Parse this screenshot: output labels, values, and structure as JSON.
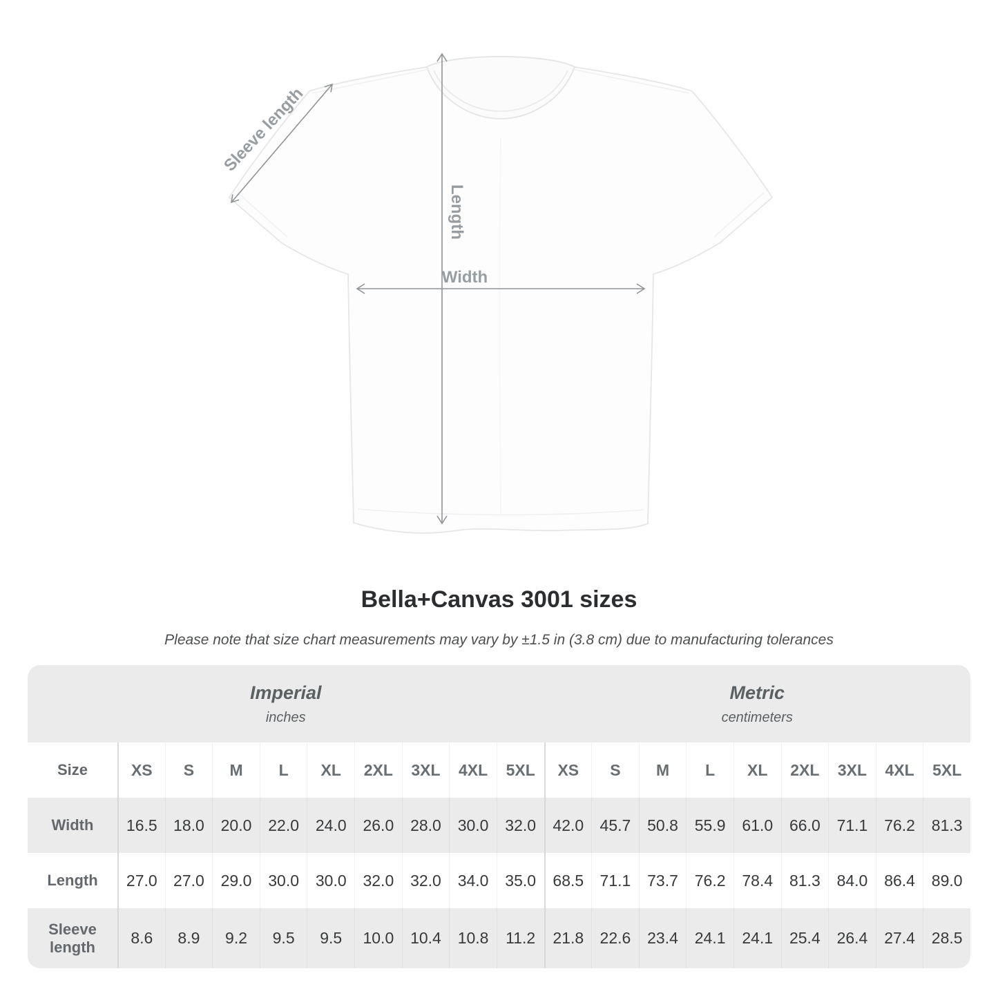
{
  "diagram": {
    "sleeve_label": "Sleeve length",
    "length_label": "Length",
    "width_label": "Width"
  },
  "title": "Bella+Canvas 3001 sizes",
  "subtitle": "Please note that size chart measurements may vary by ±1.5 in (3.8 cm) due to manufacturing tolerances",
  "table": {
    "size_row_label": "Size",
    "sections": [
      {
        "label": "Imperial",
        "unit": "inches"
      },
      {
        "label": "Metric",
        "unit": "centimeters"
      }
    ],
    "sizes": [
      "XS",
      "S",
      "M",
      "L",
      "XL",
      "2XL",
      "3XL",
      "4XL",
      "5XL"
    ],
    "rows": [
      {
        "label": "Width",
        "imperial": [
          "16.5",
          "18.0",
          "20.0",
          "22.0",
          "24.0",
          "26.0",
          "28.0",
          "30.0",
          "32.0"
        ],
        "metric": [
          "42.0",
          "45.7",
          "50.8",
          "55.9",
          "61.0",
          "66.0",
          "71.1",
          "76.2",
          "81.3"
        ]
      },
      {
        "label": "Length",
        "imperial": [
          "27.0",
          "27.0",
          "29.0",
          "30.0",
          "30.0",
          "32.0",
          "32.0",
          "34.0",
          "35.0"
        ],
        "metric": [
          "68.5",
          "71.1",
          "73.7",
          "76.2",
          "78.4",
          "81.3",
          "84.0",
          "86.4",
          "89.0"
        ]
      },
      {
        "label": "Sleeve length",
        "imperial": [
          "8.6",
          "8.9",
          "9.2",
          "9.5",
          "9.5",
          "10.0",
          "10.4",
          "10.8",
          "11.2"
        ],
        "metric": [
          "21.8",
          "22.6",
          "23.4",
          "24.1",
          "24.1",
          "25.4",
          "26.4",
          "27.4",
          "28.5"
        ]
      }
    ]
  },
  "chart_data": {
    "type": "table",
    "title": "Bella+Canvas 3001 sizes",
    "note": "Please note that size chart measurements may vary by ±1.5 in (3.8 cm) due to manufacturing tolerances",
    "column_groups": [
      "Imperial (inches)",
      "Metric (centimeters)"
    ],
    "columns": [
      "XS",
      "S",
      "M",
      "L",
      "XL",
      "2XL",
      "3XL",
      "4XL",
      "5XL"
    ],
    "rows": [
      {
        "measure": "Width",
        "imperial_in": [
          16.5,
          18.0,
          20.0,
          22.0,
          24.0,
          26.0,
          28.0,
          30.0,
          32.0
        ],
        "metric_cm": [
          42.0,
          45.7,
          50.8,
          55.9,
          61.0,
          66.0,
          71.1,
          76.2,
          81.3
        ]
      },
      {
        "measure": "Length",
        "imperial_in": [
          27.0,
          27.0,
          29.0,
          30.0,
          30.0,
          32.0,
          32.0,
          34.0,
          35.0
        ],
        "metric_cm": [
          68.5,
          71.1,
          73.7,
          76.2,
          78.4,
          81.3,
          84.0,
          86.4,
          89.0
        ]
      },
      {
        "measure": "Sleeve length",
        "imperial_in": [
          8.6,
          8.9,
          9.2,
          9.5,
          9.5,
          10.0,
          10.4,
          10.8,
          11.2
        ],
        "metric_cm": [
          21.8,
          22.6,
          23.4,
          24.1,
          24.1,
          25.4,
          26.4,
          27.4,
          28.5
        ]
      }
    ],
    "colors": {
      "stripe_bg": "#ebebeb",
      "header_text": "#5b6063",
      "value_text": "#37393b",
      "label_text": "#64686c",
      "arrow": "#909497",
      "diagram_label": "#989da1"
    }
  }
}
